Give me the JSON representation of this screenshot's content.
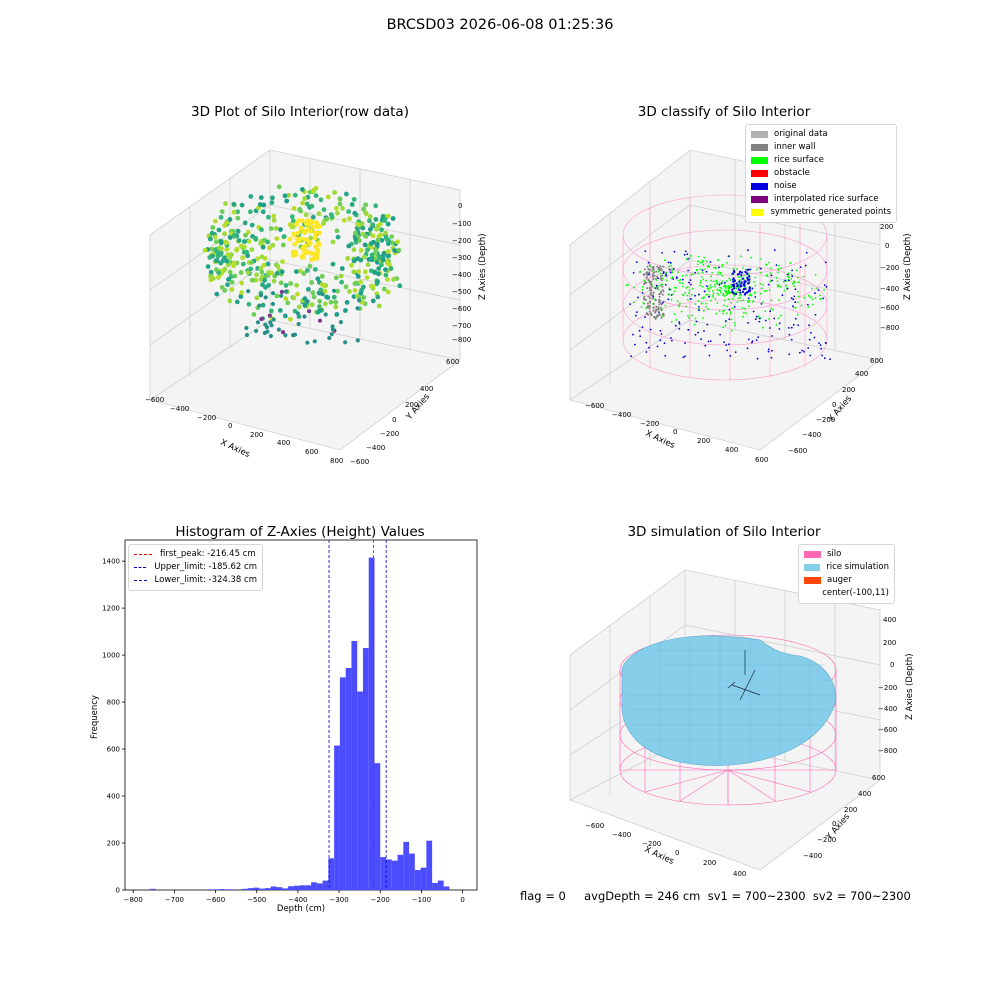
{
  "title": "BRCSD03 2026-06-08 01:25:36",
  "panels": {
    "raw": {
      "title": "3D Plot of Silo Interior(row data)",
      "xlabel": "X Axies",
      "ylabel": "Y Axies",
      "zlabel": "Z Axies (Depth)",
      "xticks": [
        "−600",
        "−400",
        "−200",
        "0",
        "200",
        "400",
        "600",
        "800"
      ],
      "yticks": [
        "600",
        "400",
        "200",
        "0",
        "−200",
        "−400",
        "−600"
      ],
      "zticks": [
        "0",
        "−100",
        "−200",
        "−300",
        "−400",
        "−500",
        "−600",
        "−700",
        "−800"
      ]
    },
    "classify": {
      "title": "3D classify of Silo Interior",
      "xlabel": "X Axies",
      "ylabel": "Y Axies",
      "zlabel": "Z Axies (Depth)",
      "xticks": [
        "−600",
        "−400",
        "−200",
        "0",
        "200",
        "400",
        "600"
      ],
      "yticks": [
        "600",
        "400",
        "200",
        "0",
        "−200",
        "−400",
        "−600"
      ],
      "zticks": [
        "200",
        "0",
        "−200",
        "−400",
        "−600",
        "−800"
      ],
      "legend": [
        {
          "label": "original data",
          "color": "#b0b0b0"
        },
        {
          "label": "inner wall",
          "color": "#808080"
        },
        {
          "label": "rice surface",
          "color": "#00ff00"
        },
        {
          "label": "obstacle",
          "color": "#ff0000"
        },
        {
          "label": "noise",
          "color": "#0000e0"
        },
        {
          "label": "interpolated rice surface",
          "color": "#800080"
        },
        {
          "label": "symmetric generated points",
          "color": "#ffff00"
        }
      ]
    },
    "simulation": {
      "title": "3D simulation of Silo Interior",
      "xlabel": "X Axies",
      "ylabel": "Y Axies",
      "zlabel": "Z Axies (Depth)",
      "xticks": [
        "−600",
        "−400",
        "−200",
        "0",
        "200",
        "400"
      ],
      "yticks": [
        "600",
        "400",
        "200",
        "0",
        "−200",
        "−400"
      ],
      "zticks": [
        "400",
        "200",
        "0",
        "−200",
        "−400",
        "−600",
        "−800"
      ],
      "legend": [
        {
          "label": "silo",
          "color": "#ff69b4"
        },
        {
          "label": "rice simulation",
          "color": "#87ceeb"
        },
        {
          "label": "auger",
          "color": "#ff4500"
        },
        {
          "label": "center(-100,11)",
          "color": ""
        }
      ]
    }
  },
  "chart_data": {
    "type": "bar",
    "title": "Histogram of Z-Axies (Height) Values",
    "xlabel": "Depth (cm)",
    "ylabel": "Frequency",
    "xlim": [
      -820,
      35
    ],
    "ylim": [
      0,
      1490
    ],
    "xticks": [
      -800,
      -700,
      -600,
      -500,
      -400,
      -300,
      -200,
      -100,
      0
    ],
    "yticks": [
      0,
      200,
      400,
      600,
      800,
      1000,
      1200,
      1400
    ],
    "bin_width": 14,
    "bins": [
      {
        "x": -760,
        "v": 5
      },
      {
        "x": -620,
        "v": 3
      },
      {
        "x": -606,
        "v": 3
      },
      {
        "x": -592,
        "v": 4
      },
      {
        "x": -578,
        "v": 3
      },
      {
        "x": -564,
        "v": 3
      },
      {
        "x": -536,
        "v": 5
      },
      {
        "x": -522,
        "v": 8
      },
      {
        "x": -508,
        "v": 10
      },
      {
        "x": -494,
        "v": 6
      },
      {
        "x": -480,
        "v": 8
      },
      {
        "x": -466,
        "v": 15
      },
      {
        "x": -452,
        "v": 12
      },
      {
        "x": -438,
        "v": 7
      },
      {
        "x": -424,
        "v": 16
      },
      {
        "x": -410,
        "v": 18
      },
      {
        "x": -396,
        "v": 20
      },
      {
        "x": -382,
        "v": 20
      },
      {
        "x": -368,
        "v": 33
      },
      {
        "x": -354,
        "v": 28
      },
      {
        "x": -340,
        "v": 40
      },
      {
        "x": -326,
        "v": 135
      },
      {
        "x": -312,
        "v": 615
      },
      {
        "x": -298,
        "v": 905
      },
      {
        "x": -284,
        "v": 945
      },
      {
        "x": -270,
        "v": 1060
      },
      {
        "x": -256,
        "v": 845
      },
      {
        "x": -242,
        "v": 1030
      },
      {
        "x": -228,
        "v": 1415
      },
      {
        "x": -214,
        "v": 540
      },
      {
        "x": -200,
        "v": 140
      },
      {
        "x": -186,
        "v": 130
      },
      {
        "x": -172,
        "v": 125
      },
      {
        "x": -158,
        "v": 150
      },
      {
        "x": -144,
        "v": 205
      },
      {
        "x": -130,
        "v": 155
      },
      {
        "x": -116,
        "v": 85
      },
      {
        "x": -102,
        "v": 95
      },
      {
        "x": -88,
        "v": 210
      },
      {
        "x": -74,
        "v": 30
      },
      {
        "x": -60,
        "v": 40
      },
      {
        "x": -46,
        "v": 15
      }
    ],
    "bar_color": "#4c4cff",
    "lines": [
      {
        "label": "first_peak: -216.45 cm",
        "x": -216.45,
        "color": "#ff0000"
      },
      {
        "label": "Upper_limit: -185.62 cm",
        "x": -185.62,
        "color": "#0000cc"
      },
      {
        "label": "Lower_limit: -324.38 cm",
        "x": -324.38,
        "color": "#0000cc"
      }
    ]
  },
  "footer": "flag = 0     avgDepth = 246 cm  sv1 = 700~2300  sv2 = 700~2300"
}
